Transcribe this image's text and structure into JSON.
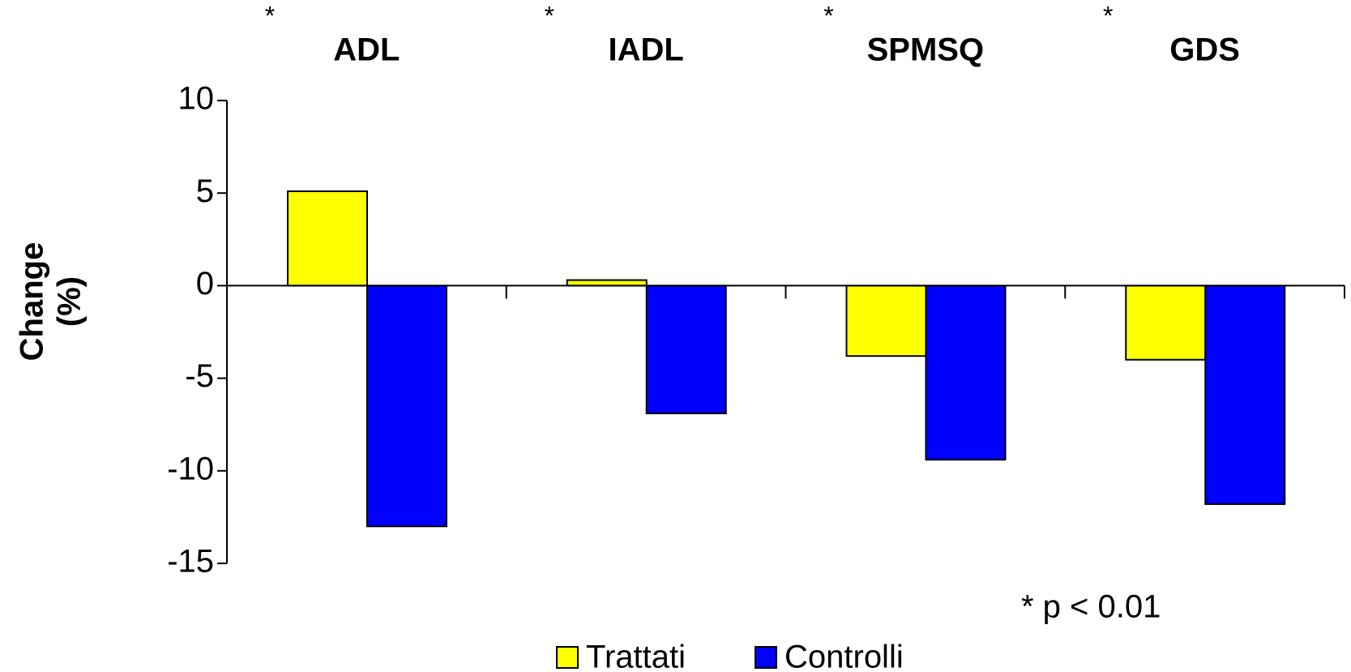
{
  "chart_data": {
    "type": "bar",
    "categories": [
      "ADL",
      "IADL",
      "SPMSQ",
      "GDS"
    ],
    "significance_marks": [
      "*",
      "*",
      "*",
      "*"
    ],
    "y_label": [
      "Change",
      "(%)"
    ],
    "series": [
      {
        "name": "Trattati",
        "color": "#ffff00",
        "values": [
          5.1,
          0.3,
          -3.8,
          -4.0
        ]
      },
      {
        "name": "Controlli",
        "color": "#0000ff",
        "values": [
          -13.0,
          -6.9,
          -9.4,
          -11.8
        ]
      }
    ],
    "ylim": [
      -15,
      10
    ],
    "yticks": [
      -15,
      -10,
      -5,
      0,
      5,
      10
    ],
    "footnote": "* p < 0.01",
    "legend": "bottom"
  }
}
